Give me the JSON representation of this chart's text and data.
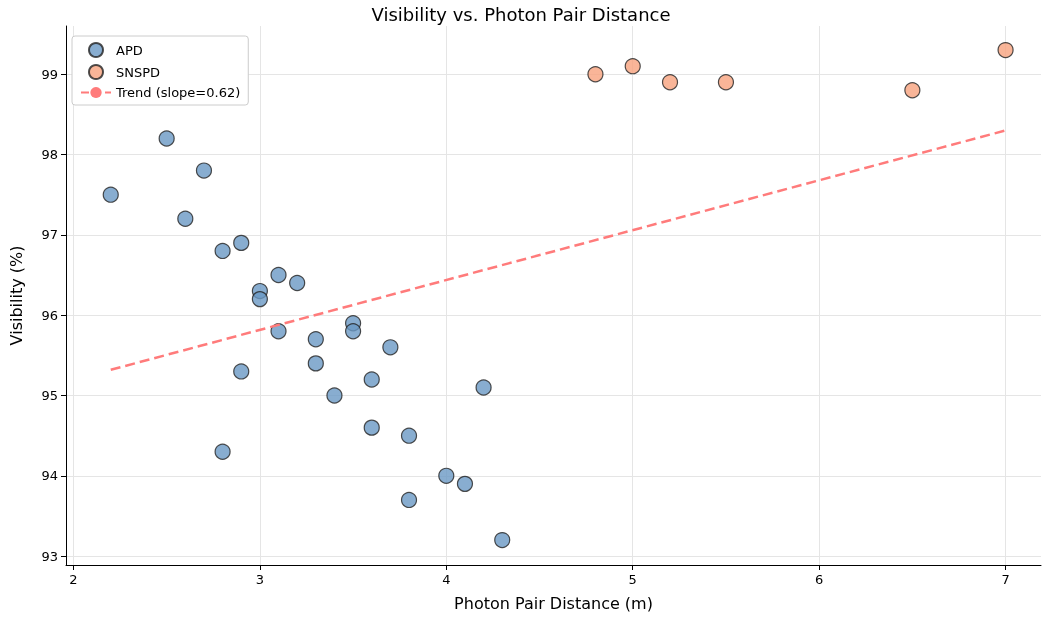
{
  "chart_data": {
    "type": "scatter",
    "title": "Visibility vs. Photon Pair Distance",
    "xlabel": "Photon Pair Distance (m)",
    "ylabel": "Visibility (%)",
    "xlim": [
      1.96,
      7.19
    ],
    "ylim": [
      92.89,
      99.6
    ],
    "xticks": [
      2,
      3,
      4,
      5,
      6,
      7
    ],
    "yticks": [
      93,
      94,
      95,
      96,
      97,
      98,
      99
    ],
    "grid": true,
    "legend": "top left",
    "marker": "circle",
    "series": [
      {
        "name": "APD",
        "type": "scatter",
        "color": "#6a98c4",
        "x": [
          2.2,
          2.5,
          2.7,
          2.6,
          2.8,
          2.9,
          3.0,
          3.0,
          3.1,
          3.2,
          3.1,
          3.3,
          3.5,
          3.5,
          3.7,
          3.3,
          2.9,
          3.6,
          3.4,
          4.2,
          3.6,
          3.8,
          2.8,
          4.0,
          4.1,
          3.8,
          4.3
        ],
        "values": [
          97.5,
          98.2,
          97.8,
          97.2,
          96.8,
          96.9,
          96.3,
          96.2,
          96.5,
          96.4,
          95.8,
          95.7,
          95.9,
          95.8,
          95.6,
          95.4,
          95.3,
          95.2,
          95.0,
          95.1,
          94.6,
          94.5,
          94.3,
          94.0,
          93.9,
          93.7,
          93.2
        ]
      },
      {
        "name": "SNSPD",
        "type": "scatter",
        "color": "#f7a27e",
        "x": [
          4.8,
          5.0,
          5.2,
          5.5,
          6.5,
          7.0
        ],
        "values": [
          99.0,
          99.1,
          98.9,
          98.9,
          98.8,
          99.3
        ]
      },
      {
        "name": "Trend (slope=0.62)",
        "type": "line",
        "color": "#ff7b7b",
        "line_style": "dashed",
        "marker": "none",
        "x": [
          2.2,
          7.0
        ],
        "values": [
          95.32,
          98.3
        ]
      }
    ]
  }
}
